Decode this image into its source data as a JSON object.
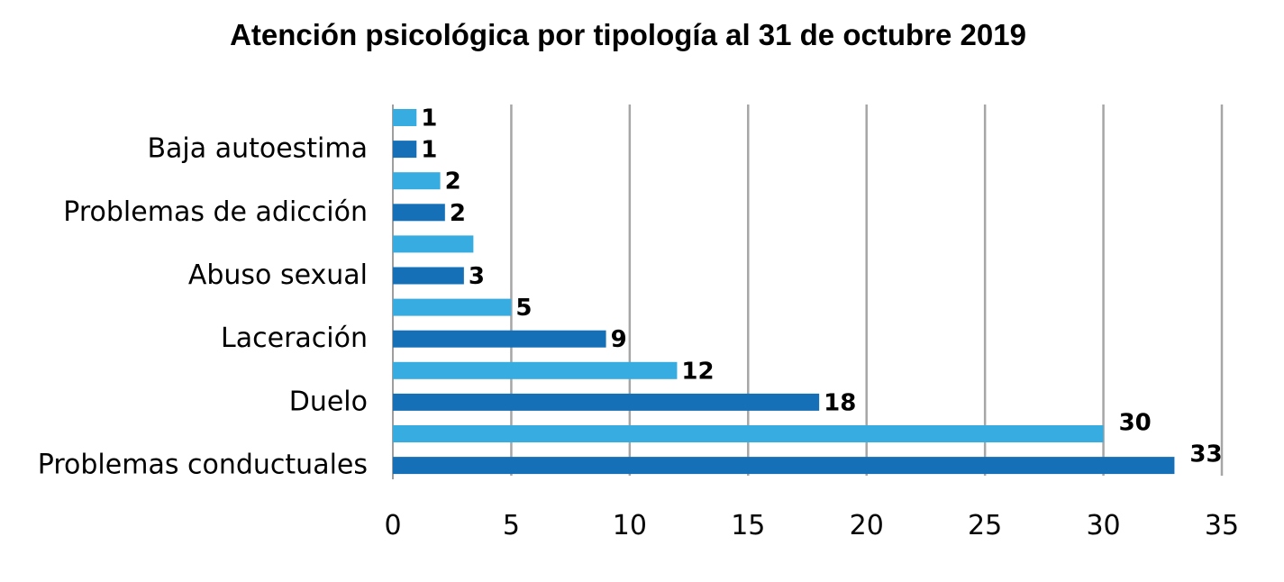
{
  "chart_data": {
    "type": "bar",
    "orientation": "horizontal",
    "title": "Atención psicológica por tipología al 31 de octubre 2019",
    "xlabel": "",
    "ylabel": "",
    "xlim": [
      0,
      35
    ],
    "x_ticks": [
      0,
      5,
      10,
      15,
      20,
      25,
      30,
      35
    ],
    "grid": "vertical",
    "legend": "none",
    "colors": {
      "light": "#36ACE0",
      "dark": "#1570B8"
    },
    "bars": [
      {
        "value": 1,
        "label": "1",
        "color": "light",
        "category": ""
      },
      {
        "value": 1,
        "label": "1",
        "color": "dark",
        "category": "Baja autoestima"
      },
      {
        "value": 2,
        "label": "2",
        "color": "light",
        "category": ""
      },
      {
        "value": 2.2,
        "label": "2",
        "color": "dark",
        "category": "Problemas de adicción"
      },
      {
        "value": 3.4,
        "label": "",
        "color": "light",
        "category": ""
      },
      {
        "value": 3,
        "label": "3",
        "color": "dark",
        "category": "Abuso sexual"
      },
      {
        "value": 5,
        "label": "5",
        "color": "light",
        "category": ""
      },
      {
        "value": 9,
        "label": "9",
        "color": "dark",
        "category": "Laceración"
      },
      {
        "value": 12,
        "label": "12",
        "color": "light",
        "category": ""
      },
      {
        "value": 18,
        "label": "18",
        "color": "dark",
        "category": "Duelo"
      },
      {
        "value": 30,
        "label": "30",
        "color": "light",
        "category": ""
      },
      {
        "value": 33,
        "label": "33",
        "color": "dark",
        "category": "Problemas conductuales"
      }
    ]
  }
}
